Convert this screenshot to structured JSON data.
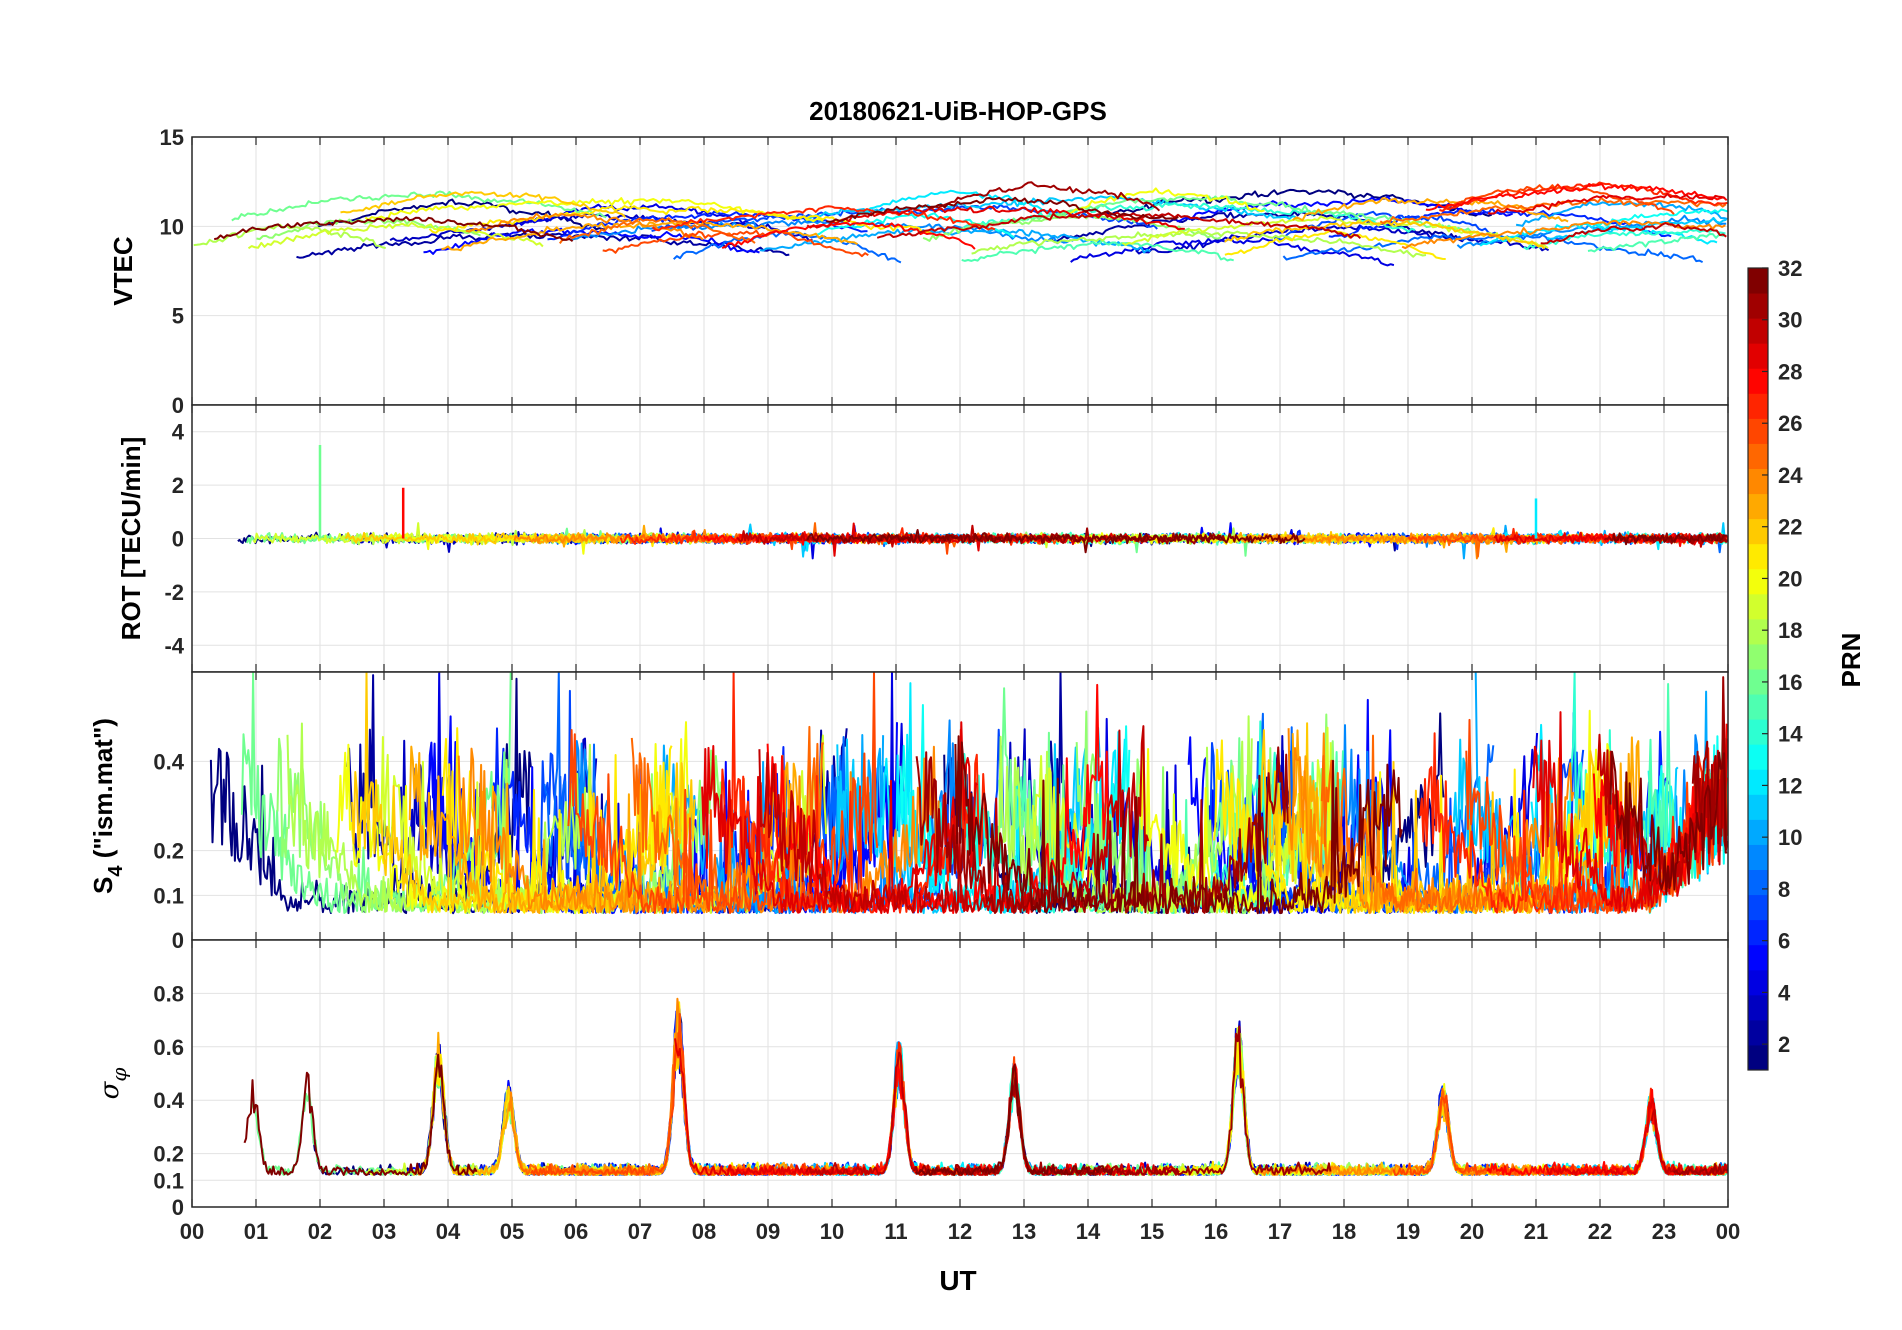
{
  "chart_data": {
    "type": "line",
    "title": "20180621-UiB-HOP-GPS",
    "xlabel": "UT",
    "x_ticks": [
      "00",
      "01",
      "02",
      "03",
      "04",
      "05",
      "06",
      "07",
      "08",
      "09",
      "10",
      "11",
      "12",
      "13",
      "14",
      "15",
      "16",
      "17",
      "18",
      "19",
      "20",
      "21",
      "22",
      "23",
      "00"
    ],
    "x_range_hours": [
      0,
      24
    ],
    "colorbar": {
      "label": "PRN",
      "range": [
        1,
        32
      ],
      "ticks": [
        "2",
        "4",
        "6",
        "8",
        "10",
        "12",
        "14",
        "16",
        "18",
        "20",
        "22",
        "24",
        "26",
        "28",
        "30",
        "32"
      ],
      "colormap": "jet"
    },
    "panels": [
      {
        "name": "vtec",
        "ylabel": "VTEC",
        "ylim": [
          0,
          15
        ],
        "yticks": [
          "0",
          "5",
          "10",
          "15"
        ],
        "baseline": 9.5,
        "spread": 2.2,
        "noise": 0.35,
        "description_values": {
          "typical_range": [
            6,
            13
          ]
        }
      },
      {
        "name": "rot",
        "ylabel": "ROT [TECU/min]",
        "ylim": [
          -5,
          5
        ],
        "yticks": [
          "-4",
          "-2",
          "0",
          "2",
          "4"
        ],
        "baseline": 0,
        "spread": 0.3,
        "noise": 0.15,
        "spikes": [
          {
            "t": 2.0,
            "v": 3.5,
            "prn": 16
          },
          {
            "t": 3.3,
            "v": 1.9,
            "prn": 28
          },
          {
            "t": 21.0,
            "v": 1.5,
            "prn": 12
          }
        ]
      },
      {
        "name": "s4",
        "ylabel_main": "S",
        "ylabel_sub": "4",
        "ylabel_rest": " (\"ism.mat\")",
        "ylim": [
          0,
          0.6
        ],
        "yticks": [
          "0",
          "0.1",
          "0.2",
          "0.4"
        ],
        "baseline": 0.12,
        "spread": 0.45,
        "noise": 0.06
      },
      {
        "name": "sigma",
        "ylabel_symbol": "σ",
        "ylabel_sub": "φ",
        "ylim": [
          0,
          1
        ],
        "yticks": [
          "0",
          "0.1",
          "0.2",
          "0.4",
          "0.6",
          "0.8"
        ],
        "baseline": 0.12,
        "noise": 0.03,
        "peaks": [
          {
            "t": 0.95,
            "v": 0.5
          },
          {
            "t": 1.8,
            "v": 0.48
          },
          {
            "t": 3.85,
            "v": 0.63
          },
          {
            "t": 4.95,
            "v": 0.46
          },
          {
            "t": 7.6,
            "v": 0.77
          },
          {
            "t": 11.05,
            "v": 0.62
          },
          {
            "t": 12.85,
            "v": 0.55
          },
          {
            "t": 16.35,
            "v": 0.7
          },
          {
            "t": 19.55,
            "v": 0.46
          },
          {
            "t": 22.8,
            "v": 0.42
          }
        ]
      }
    ],
    "prns": [
      1,
      2,
      3,
      4,
      5,
      6,
      7,
      8,
      9,
      10,
      11,
      12,
      13,
      14,
      15,
      16,
      17,
      18,
      19,
      20,
      21,
      22,
      23,
      24,
      25,
      26,
      27,
      28,
      29,
      30,
      31,
      32
    ]
  }
}
